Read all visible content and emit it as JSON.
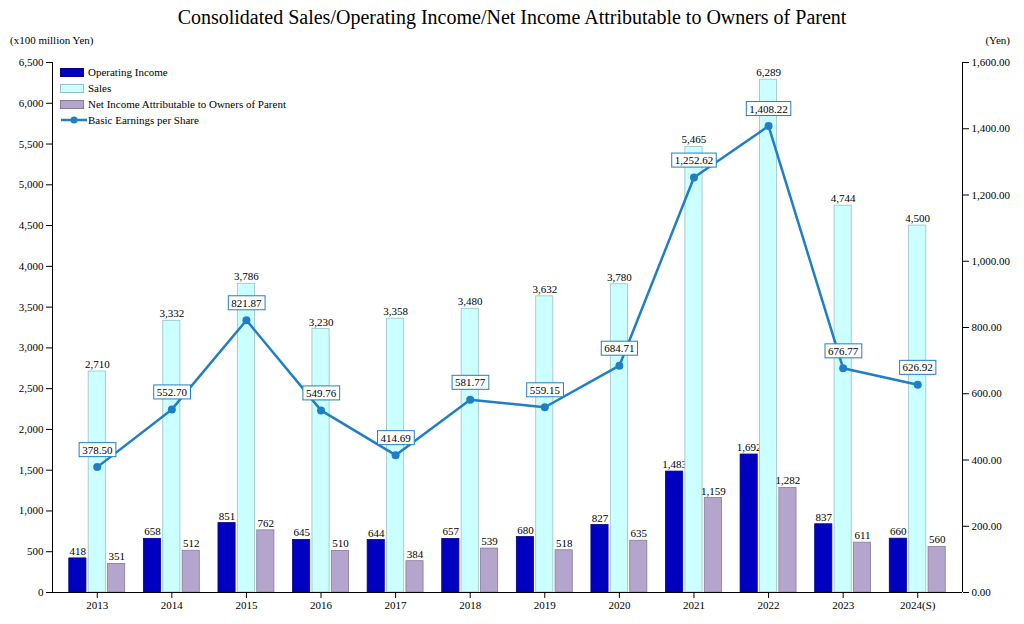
{
  "chart_data": {
    "type": "bar",
    "title": "Consolidated Sales/Operating Income/Net Income Attributable to Owners of Parent",
    "ylabel": "(x100 million Yen)",
    "y2label": "(Yen)",
    "categories": [
      "2013",
      "2014",
      "2015",
      "2016",
      "2017",
      "2018",
      "2019",
      "2020",
      "2021",
      "2022",
      "2023",
      "2024(S)"
    ],
    "series": [
      {
        "name": "Operating Income",
        "type": "bar",
        "color": "#0000c0",
        "values": [
          418,
          658,
          851,
          645,
          644,
          657,
          680,
          827,
          1483,
          1692,
          837,
          660
        ],
        "value_labels": [
          "418",
          "658",
          "851",
          "645",
          "644",
          "657",
          "680",
          "827",
          "1,483",
          "1,692",
          "837",
          "660"
        ]
      },
      {
        "name": "Sales",
        "type": "bar",
        "color": "#ccffff",
        "values": [
          2710,
          3332,
          3786,
          3230,
          3358,
          3480,
          3632,
          3780,
          5465,
          6289,
          4744,
          4500
        ],
        "value_labels": [
          "2,710",
          "3,332",
          "3,786",
          "3,230",
          "3,358",
          "3,480",
          "3,632",
          "3,780",
          "5,465",
          "6,289",
          "4,744",
          "4,500"
        ]
      },
      {
        "name": "Net Income Attributable to Owners of Parent",
        "type": "bar",
        "color": "#b3a5cc",
        "values": [
          351,
          512,
          762,
          510,
          384,
          539,
          518,
          635,
          1159,
          1282,
          611,
          560
        ],
        "value_labels": [
          "351",
          "512",
          "762",
          "510",
          "384",
          "539",
          "518",
          "635",
          "1,159",
          "1,282",
          "611",
          "560"
        ]
      },
      {
        "name": "Basic Earnings per Share",
        "type": "line",
        "axis": "y2",
        "color": "#1f7fc4",
        "marker": "circle",
        "values": [
          378.5,
          552.7,
          821.87,
          549.76,
          414.69,
          581.77,
          559.15,
          684.71,
          1252.62,
          1408.22,
          676.77,
          626.92
        ],
        "value_labels": [
          "378.50",
          "552.70",
          "821.87",
          "549.76",
          "414.69",
          "581.77",
          "559.15",
          "684.71",
          "1,252.62",
          "1,408.22",
          "676.77",
          "626.92"
        ]
      }
    ],
    "ylim": [
      0,
      6500
    ],
    "yticks": [
      0,
      500,
      {
        "value": 1000,
        "label": "1,000"
      },
      {
        "value": 1500,
        "label": "1,500"
      },
      {
        "value": 2000,
        "label": "2,000"
      },
      {
        "value": 2500,
        "label": "2,500"
      },
      {
        "value": 3000,
        "label": "3,000"
      },
      {
        "value": 3500,
        "label": "3,500"
      },
      {
        "value": 4000,
        "label": "4,000"
      },
      {
        "value": 4500,
        "label": "4,500"
      },
      {
        "value": 5000,
        "label": "5,000"
      },
      {
        "value": 5500,
        "label": "5,500"
      },
      {
        "value": 6000,
        "label": "6,000"
      },
      {
        "value": 6500,
        "label": "6,500"
      }
    ],
    "y2lim": [
      0,
      1600
    ],
    "y2ticks": [
      {
        "value": 0,
        "label": "0.00"
      },
      {
        "value": 200,
        "label": "200.00"
      },
      {
        "value": 400,
        "label": "400.00"
      },
      {
        "value": 600,
        "label": "600.00"
      },
      {
        "value": 800,
        "label": "800.00"
      },
      {
        "value": 1000,
        "label": "1,000.00"
      },
      {
        "value": 1200,
        "label": "1,200.00"
      },
      {
        "value": 1400,
        "label": "1,400.00"
      },
      {
        "value": 1600,
        "label": "1,600.00"
      }
    ],
    "grid": false,
    "legend": "upper left",
    "data_labels": true
  }
}
